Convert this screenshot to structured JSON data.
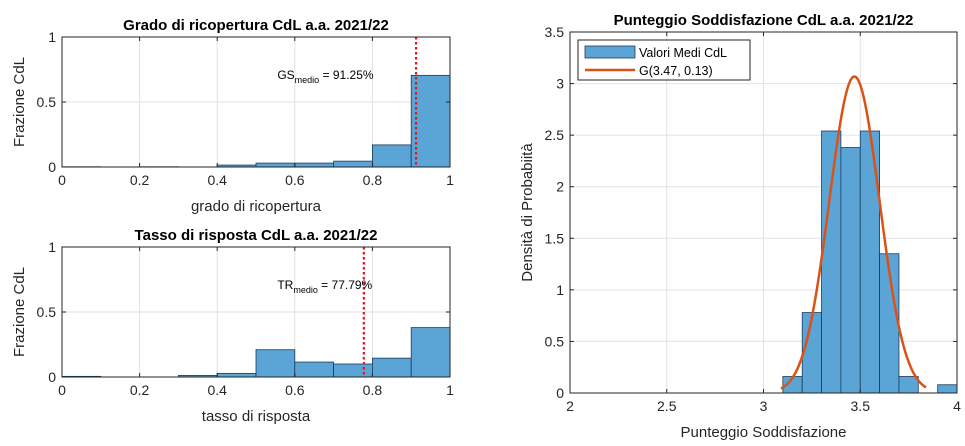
{
  "colors": {
    "bar_fill": "#5aa4d6",
    "bar_stroke": "#1f3b57",
    "grid": "#e2e2e2",
    "axis": "#262626",
    "ref_line": "#e8141c",
    "fit_line": "#d95319"
  },
  "chart_data": [
    {
      "type": "bar",
      "title": "Grado di ricopertura CdL a.a. 2021/22",
      "xlabel": "grado di ricopertura",
      "ylabel": "Frazione CdL",
      "xlim": [
        0,
        1
      ],
      "ylim": [
        0,
        1
      ],
      "xticks": [
        "0",
        "0.2",
        "0.4",
        "0.6",
        "0.8",
        "1"
      ],
      "yticks": [
        "0",
        "0.5",
        "1"
      ],
      "grid": true,
      "bin_edges": [
        0,
        0.1,
        0.2,
        0.3,
        0.4,
        0.5,
        0.6,
        0.7,
        0.8,
        0.9,
        1.0
      ],
      "values": [
        0.002,
        0.0,
        0.002,
        0.0,
        0.015,
        0.03,
        0.03,
        0.045,
        0.17,
        0.705
      ],
      "reference_line": {
        "x": 0.9125,
        "label_main": "GS",
        "label_sub": "medio",
        "label_value": " = 91.25%"
      }
    },
    {
      "type": "bar",
      "title": "Tasso di risposta CdL a.a. 2021/22",
      "xlabel": "tasso di risposta",
      "ylabel": "Frazione CdL",
      "xlim": [
        0,
        1
      ],
      "ylim": [
        0,
        1
      ],
      "xticks": [
        "0",
        "0.2",
        "0.4",
        "0.6",
        "0.8",
        "1"
      ],
      "yticks": [
        "0",
        "0.5",
        "1"
      ],
      "grid": true,
      "bin_edges": [
        0,
        0.1,
        0.2,
        0.3,
        0.4,
        0.5,
        0.6,
        0.7,
        0.8,
        0.9,
        1.0
      ],
      "values": [
        0.005,
        0.0,
        0.0,
        0.012,
        0.028,
        0.21,
        0.115,
        0.1,
        0.145,
        0.38
      ],
      "reference_line": {
        "x": 0.7779,
        "label_main": "TR",
        "label_sub": "medio",
        "label_value": " = 77.79%"
      }
    },
    {
      "type": "bar",
      "title": "Punteggio Soddisfazione CdL a.a. 2021/22",
      "xlabel": "Punteggio Soddisfazione",
      "ylabel": "Densità di Probabiità",
      "xlim": [
        2,
        4
      ],
      "ylim": [
        0,
        3.5
      ],
      "xticks": [
        "2",
        "2.5",
        "3",
        "3.5",
        "4"
      ],
      "yticks": [
        "0",
        "0.5",
        "1",
        "1.5",
        "2",
        "2.5",
        "3",
        "3.5"
      ],
      "grid": true,
      "legend_position": "top-left",
      "series": [
        {
          "name": "Valori Medi CdL",
          "bin_edges": [
            3.2,
            3.3,
            3.4,
            3.5,
            3.6,
            3.7,
            3.8,
            3.9,
            4.0
          ],
          "values": [
            0.78,
            2.54,
            2.38,
            2.54,
            1.35,
            0.16,
            0.0,
            0.08
          ],
          "extra_bins": [
            {
              "x0": 3.1,
              "x1": 3.2,
              "value": 0.16
            }
          ]
        },
        {
          "name": "G(3.47, 0.13)",
          "type": "line",
          "mean": 3.47,
          "sigma": 0.13,
          "x_range": [
            3.09,
            3.84
          ]
        }
      ]
    }
  ]
}
